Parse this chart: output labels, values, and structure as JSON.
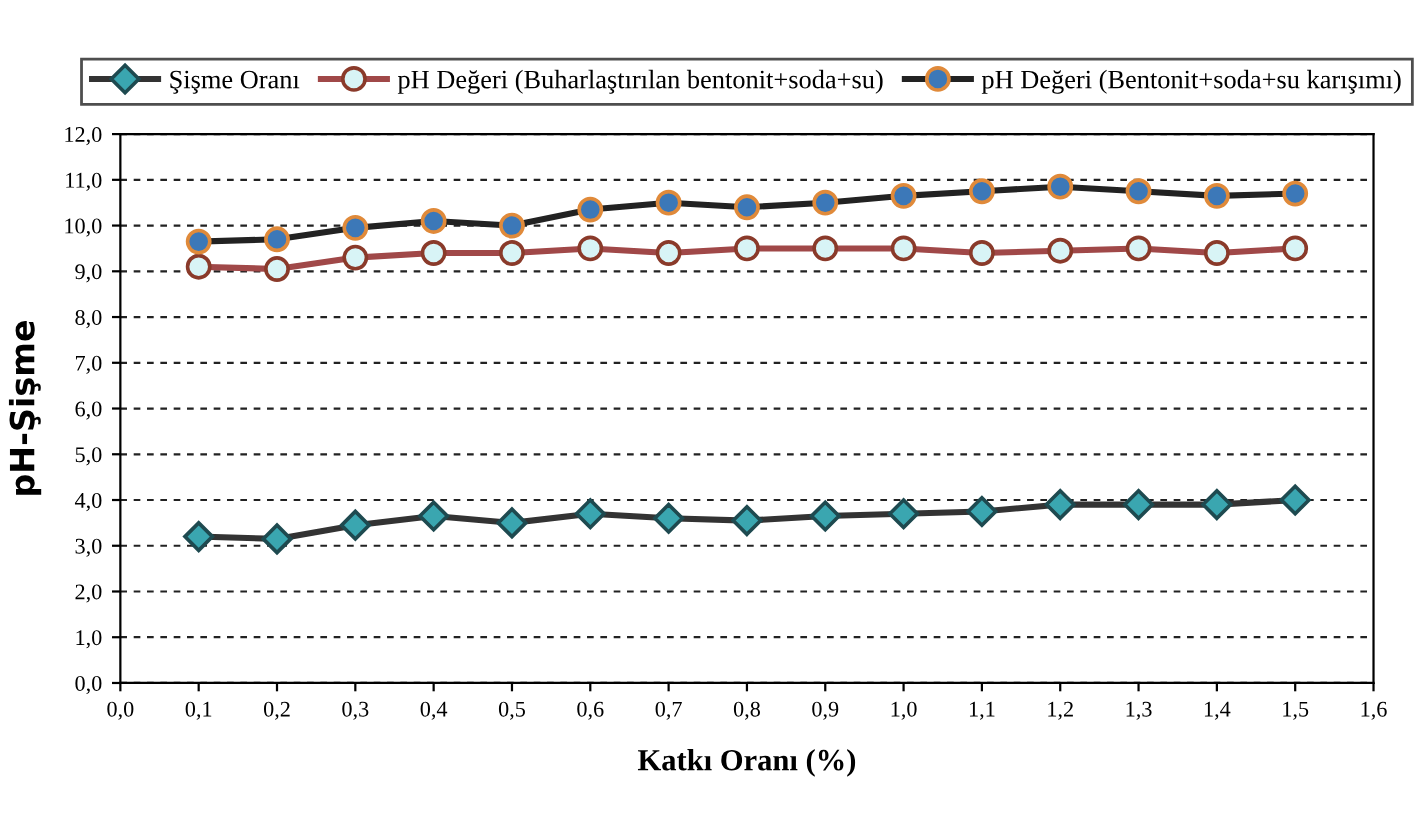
{
  "chart_data": {
    "type": "line",
    "xlabel": "Katkı Oranı (%)",
    "ylabel": "pH-Şişme",
    "x": [
      0.1,
      0.2,
      0.3,
      0.4,
      0.5,
      0.6,
      0.7,
      0.8,
      0.9,
      1.0,
      1.1,
      1.2,
      1.3,
      1.4,
      1.5
    ],
    "series": [
      {
        "name": "Şişme Oranı",
        "color": "#333333",
        "marker": "diamond",
        "values": [
          3.2,
          3.15,
          3.45,
          3.65,
          3.5,
          3.7,
          3.6,
          3.55,
          3.65,
          3.7,
          3.75,
          3.9,
          3.9,
          3.9,
          4.0
        ]
      },
      {
        "name": "pH Değeri (Buharlaştırılan bentonit+soda+su)",
        "color": "#a04848",
        "marker": "circle",
        "values": [
          9.1,
          9.05,
          9.3,
          9.4,
          9.4,
          9.5,
          9.4,
          9.5,
          9.5,
          9.5,
          9.4,
          9.45,
          9.5,
          9.4,
          9.5
        ]
      },
      {
        "name": "pH Değeri (Bentonit+soda+su karışımı)",
        "color": "#222222",
        "marker": "circle",
        "values": [
          9.65,
          9.7,
          9.95,
          10.1,
          10.0,
          10.35,
          10.5,
          10.4,
          10.5,
          10.65,
          10.75,
          10.85,
          10.75,
          10.65,
          10.7
        ]
      }
    ],
    "xlim": [
      0.0,
      1.6
    ],
    "xticks": [
      {
        "value": 0.0,
        "label": "0,0"
      },
      {
        "value": 0.1,
        "label": "0,1"
      },
      {
        "value": 0.2,
        "label": "0,2"
      },
      {
        "value": 0.3,
        "label": "0,3"
      },
      {
        "value": 0.4,
        "label": "0,4"
      },
      {
        "value": 0.5,
        "label": "0,5"
      },
      {
        "value": 0.6,
        "label": "0,6"
      },
      {
        "value": 0.7,
        "label": "0,7"
      },
      {
        "value": 0.8,
        "label": "0,8"
      },
      {
        "value": 0.9,
        "label": "0,9"
      },
      {
        "value": 1.0,
        "label": "1,0"
      },
      {
        "value": 1.1,
        "label": "1,1"
      },
      {
        "value": 1.2,
        "label": "1,2"
      },
      {
        "value": 1.3,
        "label": "1,3"
      },
      {
        "value": 1.4,
        "label": "1,4"
      },
      {
        "value": 1.5,
        "label": "1,5"
      },
      {
        "value": 1.6,
        "label": "1,6"
      }
    ],
    "ylim": [
      0.0,
      12.0
    ],
    "yticks": [
      {
        "value": 0.0,
        "label": "0,0"
      },
      {
        "value": 1.0,
        "label": "1,0"
      },
      {
        "value": 2.0,
        "label": "2,0"
      },
      {
        "value": 3.0,
        "label": "3,0"
      },
      {
        "value": 4.0,
        "label": "4,0"
      },
      {
        "value": 5.0,
        "label": "5,0"
      },
      {
        "value": 6.0,
        "label": "6,0"
      },
      {
        "value": 7.0,
        "label": "7,0"
      },
      {
        "value": 8.0,
        "label": "8,0"
      },
      {
        "value": 9.0,
        "label": "9,0"
      },
      {
        "value": 10.0,
        "label": "10,0"
      },
      {
        "value": 11.0,
        "label": "11,0"
      },
      {
        "value": 12.0,
        "label": "12,0"
      }
    ],
    "grid": "y",
    "legend": "top",
    "line_style": "solid"
  }
}
